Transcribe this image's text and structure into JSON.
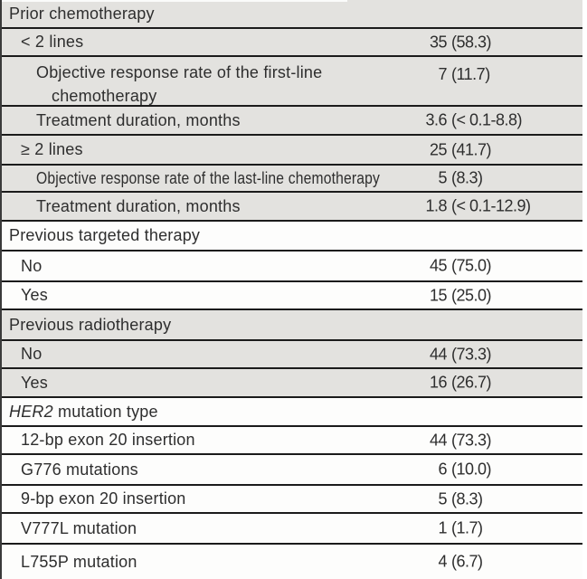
{
  "table": {
    "description": "Patient characteristics table excerpt, n (%)",
    "rows": [
      {
        "label": "Prior chemotherapy",
        "value": "",
        "indent": 0
      },
      {
        "label": "< 2 lines",
        "value": "35 (58.3)",
        "indent": 1
      },
      {
        "label": "Objective response rate of the first-line chemotherapy",
        "value": "7 (11.7)",
        "indent": 2
      },
      {
        "label": "Treatment duration, months",
        "value": "3.6 (< 0.1-8.8)",
        "indent": 2
      },
      {
        "label": "≥ 2 lines",
        "value": "25 (41.7)",
        "indent": 1
      },
      {
        "label": "Objective response rate of the last-line chemotherapy",
        "value": "5 (8.3)",
        "indent": 2
      },
      {
        "label": "Treatment duration, months",
        "value": "1.8 (< 0.1-12.9)",
        "indent": 2
      },
      {
        "label": "Previous targeted therapy",
        "value": "",
        "indent": 0
      },
      {
        "label": "No",
        "value": "45 (75.0)",
        "indent": 1
      },
      {
        "label": "Yes",
        "value": "15 (25.0)",
        "indent": 1
      },
      {
        "label": "Previous radiotherapy",
        "value": "",
        "indent": 0
      },
      {
        "label": "No",
        "value": "44 (73.3)",
        "indent": 1
      },
      {
        "label": "Yes",
        "value": "16 (26.7)",
        "indent": 1
      },
      {
        "label": "HER2 mutation type",
        "value": "",
        "indent": 0,
        "italic_prefix": "HER2"
      },
      {
        "label": "12-bp exon 20 insertion",
        "value": "44 (73.3)",
        "indent": 1
      },
      {
        "label": "G776 mutations",
        "value": "6 (10.0)",
        "indent": 1
      },
      {
        "label": "9-bp exon 20 insertion",
        "value": "5 (8.3)",
        "indent": 1
      },
      {
        "label": "V777L mutation",
        "value": "1 (1.7)",
        "indent": 1
      },
      {
        "label": "L755P mutation",
        "value": "4 (6.7)",
        "indent": 1
      }
    ],
    "colors": {
      "shaded_row_bg": "#e3e2df",
      "plain_row_bg": "#fdfdfc",
      "rule": "#1b1b1b",
      "text": "#2e2e2e"
    }
  }
}
